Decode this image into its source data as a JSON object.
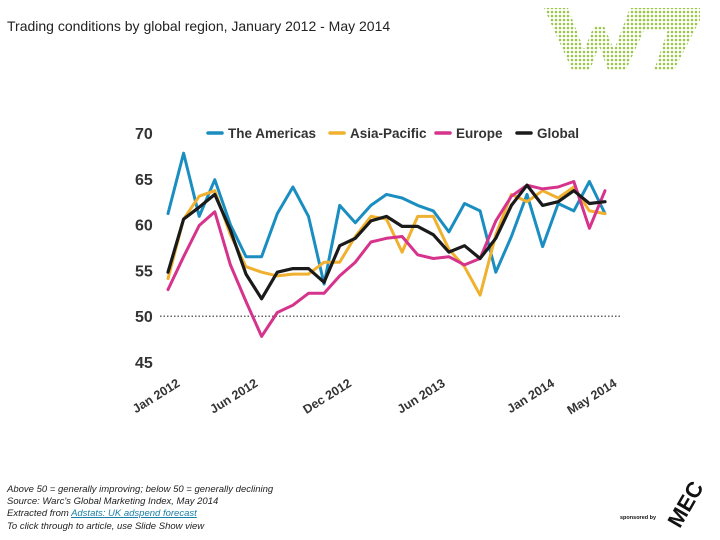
{
  "title": "Trading conditions by global region, January 2012 - May 2014",
  "notes": {
    "line1": "Above 50 = generally improving; below 50 = generally declining",
    "line2": "Source: Warc's Global Marketing Index, May 2014",
    "line3_prefix": "Extracted from ",
    "line3_link": "Adstats: UK adspend forecast",
    "line4": "To click through to article, use Slide Show view"
  },
  "sponsor": {
    "label": "sponsored by",
    "brand": "MEC"
  },
  "colors": {
    "americas": "#1a8ec0",
    "asia_pacific": "#f0b030",
    "europe": "#d6338c",
    "global": "#1a1a1a"
  },
  "chart_data": {
    "type": "line",
    "ylim": [
      45,
      70
    ],
    "yticks": [
      45,
      50,
      55,
      60,
      65,
      70
    ],
    "reference_line": 50,
    "grid": false,
    "legend": "top",
    "x": [
      "Jan 2012",
      "Feb 2012",
      "Mar 2012",
      "Apr 2012",
      "May 2012",
      "Jun 2012",
      "Jul 2012",
      "Aug 2012",
      "Sep 2012",
      "Oct 2012",
      "Nov 2012",
      "Dec 2012",
      "Jan 2013",
      "Feb 2013",
      "Mar 2013",
      "Apr 2013",
      "May 2013",
      "Jun 2013",
      "Jul 2013",
      "Aug 2013",
      "Sep 2013",
      "Oct 2013",
      "Nov 2013",
      "Dec 2013",
      "Jan 2014",
      "Feb 2014",
      "Mar 2014",
      "Apr 2014",
      "May 2014"
    ],
    "xtick_labels": [
      {
        "index": 0,
        "label": "Jan 2012"
      },
      {
        "index": 5,
        "label": "Jun 2012"
      },
      {
        "index": 11,
        "label": "Dec 2012"
      },
      {
        "index": 17,
        "label": "Jun 2013"
      },
      {
        "index": 24,
        "label": "Jan 2014"
      },
      {
        "index": 28,
        "label": "May 2014"
      }
    ],
    "series": [
      {
        "name": "The Americas",
        "color": "#1a8ec0",
        "values": [
          61.2,
          67.8,
          60.9,
          64.9,
          60.0,
          56.5,
          56.5,
          61.2,
          64.1,
          60.9,
          53.5,
          62.1,
          60.2,
          62.1,
          63.3,
          62.9,
          62.1,
          61.5,
          59.2,
          62.3,
          61.5,
          54.8,
          58.7,
          63.3,
          57.6,
          62.3,
          61.5,
          64.7,
          61.2
        ]
      },
      {
        "name": "Asia-Pacific",
        "color": "#f0b030",
        "values": [
          54.1,
          60.6,
          63.1,
          63.7,
          58.9,
          55.4,
          54.8,
          54.4,
          54.6,
          54.6,
          55.9,
          55.9,
          58.7,
          60.9,
          60.6,
          57.0,
          60.9,
          60.9,
          57.3,
          55.4,
          52.3,
          58.9,
          63.3,
          62.5,
          63.7,
          62.9,
          64.1,
          61.5,
          61.2
        ]
      },
      {
        "name": "Europe",
        "color": "#d6338c",
        "values": [
          52.9,
          56.5,
          59.9,
          61.4,
          55.6,
          51.6,
          47.8,
          50.4,
          51.2,
          52.5,
          52.5,
          54.4,
          55.9,
          58.1,
          58.5,
          58.7,
          56.7,
          56.3,
          56.5,
          55.6,
          56.3,
          60.4,
          63.1,
          64.3,
          63.9,
          64.1,
          64.7,
          59.6,
          63.7
        ]
      },
      {
        "name": "Global",
        "color": "#1a1a1a",
        "values": [
          54.8,
          60.6,
          61.9,
          63.3,
          59.4,
          54.6,
          51.9,
          54.8,
          55.2,
          55.2,
          53.7,
          57.7,
          58.5,
          60.4,
          60.9,
          59.8,
          59.8,
          58.9,
          57.0,
          57.7,
          56.3,
          58.5,
          62.1,
          64.3,
          62.1,
          62.5,
          63.7,
          62.3,
          62.5
        ]
      }
    ]
  }
}
